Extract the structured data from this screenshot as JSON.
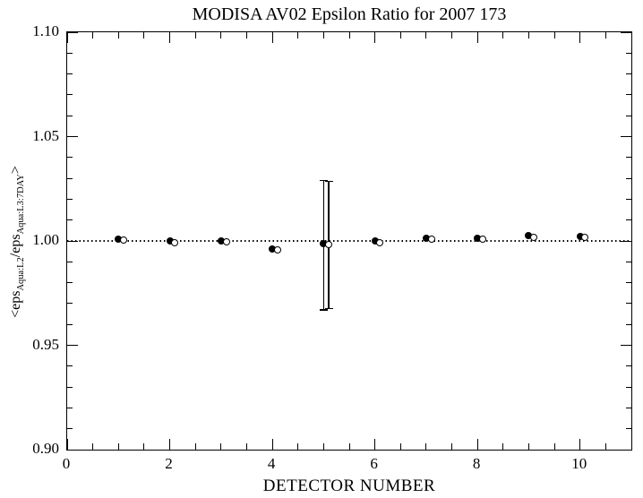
{
  "title": "MODISA AV02 Epsilon Ratio for 2007 173",
  "colors": {
    "foreground": "#000000",
    "background": "#ffffff"
  },
  "chart_data": {
    "type": "scatter",
    "title": "MODISA AV02 Epsilon Ratio for 2007 173",
    "xlabel": "DETECTOR NUMBER",
    "ylabel": "<eps_Aqua:L2/eps_Aqua:L3:7DAY>",
    "ylabel_parts": [
      {
        "text": "<eps",
        "sub": false
      },
      {
        "text": "Aqua:L2",
        "sub": true
      },
      {
        "text": "/eps",
        "sub": false
      },
      {
        "text": "Aqua:L3:7DAY",
        "sub": true
      },
      {
        "text": ">",
        "sub": false
      }
    ],
    "xlim": [
      0,
      11
    ],
    "ylim": [
      0.9,
      1.1
    ],
    "xaxis": {
      "majors": [
        0,
        2,
        4,
        6,
        8,
        10
      ],
      "major_labels": [
        "0",
        "2",
        "4",
        "6",
        "8",
        "10"
      ],
      "minor_step": 0.5
    },
    "yaxis": {
      "majors": [
        0.9,
        0.95,
        1.0,
        1.05,
        1.1
      ],
      "major_labels": [
        "0.90",
        "0.95",
        "1.00",
        "1.05",
        "1.10"
      ],
      "minor_step": 0.01
    },
    "x": [
      1,
      2,
      3,
      4,
      5,
      6,
      7,
      8,
      9,
      10
    ],
    "series": [
      {
        "name": "epsilon ratio (filled circles)",
        "marker": "filled-circle",
        "x_offset": 0,
        "values": [
          1.0007,
          1.0,
          1.0,
          0.996,
          0.9985,
          1.0,
          1.0014,
          1.0014,
          1.0024,
          1.0021
        ]
      },
      {
        "name": "epsilon ratio (open circles)",
        "marker": "open-circle",
        "x_offset": 0.1,
        "values": [
          1.0003,
          0.9993,
          0.9996,
          0.9955,
          0.9981,
          0.9993,
          1.0007,
          1.001,
          1.0017,
          1.0017
        ]
      }
    ],
    "error_bars": [
      {
        "x": 5.0,
        "low": 0.967,
        "high": 1.029
      },
      {
        "x": 5.1,
        "low": 0.9675,
        "high": 1.0285
      }
    ],
    "ref_line_y": 1.0,
    "grid": false,
    "legend": "none"
  }
}
